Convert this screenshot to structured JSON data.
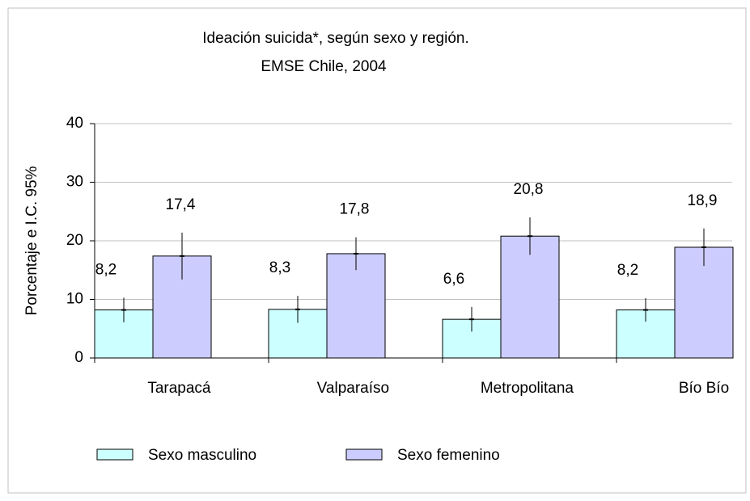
{
  "chart_data": {
    "type": "bar",
    "title": "Ideación suicida*, según sexo y región.",
    "subtitle": "EMSE Chile, 2004",
    "ylabel": "Porcentaje e I.C. 95%",
    "categories": [
      "Tarapacá",
      "Valparaíso",
      "Metropolitana",
      "Bío Bío"
    ],
    "series": [
      {
        "name": "Sexo masculino",
        "color": "#ccffff",
        "values": [
          8.2,
          8.3,
          6.6,
          8.2
        ],
        "value_labels": [
          "8,2",
          "8,3",
          "6,6",
          "8,2"
        ],
        "errors": [
          2.1,
          2.3,
          2.1,
          2.0
        ]
      },
      {
        "name": "Sexo femenino",
        "color": "#ccccff",
        "values": [
          17.4,
          17.8,
          20.8,
          18.9
        ],
        "value_labels": [
          "17,4",
          "17,8",
          "20,8",
          "18,9"
        ],
        "errors": [
          4.0,
          2.8,
          3.2,
          3.2
        ]
      }
    ],
    "ylim": [
      0,
      40
    ],
    "yticks": [
      0,
      10,
      20,
      30,
      40
    ],
    "grid": true,
    "legend": "bottom"
  }
}
